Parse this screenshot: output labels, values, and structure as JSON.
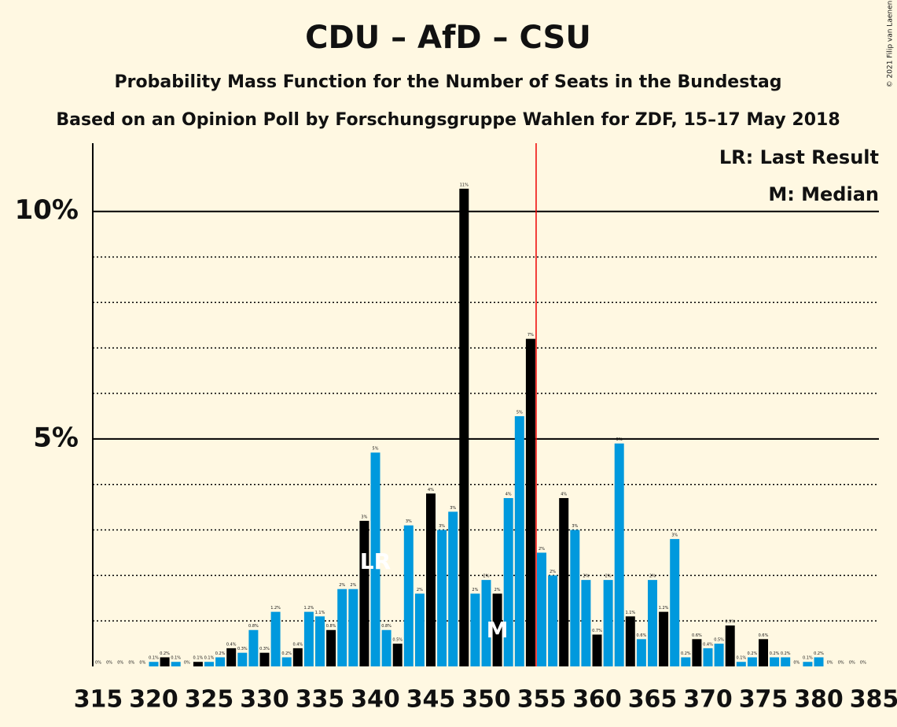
{
  "chart_data": {
    "type": "bar",
    "title": "CDU – AfD – CSU",
    "subtitle": "Probability Mass Function for the Number of Seats in the Bundestag",
    "subtitle2": "Based on an Opinion Poll by Forschungsgruppe Wahlen for ZDF, 15–17 May 2018",
    "legend": [
      "LR: Last Result",
      "M: Median"
    ],
    "copyright": "© 2021 Filip van Laenen",
    "x": [
      315,
      316,
      317,
      318,
      319,
      320,
      321,
      322,
      323,
      324,
      325,
      326,
      327,
      328,
      329,
      330,
      331,
      332,
      333,
      334,
      335,
      336,
      337,
      338,
      339,
      340,
      341,
      342,
      343,
      344,
      345,
      346,
      347,
      348,
      349,
      350,
      351,
      352,
      353,
      354,
      355,
      356,
      357,
      358,
      359,
      360,
      361,
      362,
      363,
      364,
      365,
      366,
      367,
      368,
      369,
      370,
      371,
      372,
      373,
      374,
      375,
      376,
      377,
      378,
      379,
      380,
      381,
      382,
      383,
      384
    ],
    "values": [
      0,
      0,
      0,
      0,
      0,
      0.1,
      0.2,
      0.1,
      0,
      0.1,
      0.1,
      0.2,
      0.4,
      0.3,
      0.8,
      0.3,
      1.2,
      0.2,
      0.4,
      1.2,
      1.1,
      0.8,
      1.7,
      1.7,
      3.2,
      4.7,
      0.8,
      0.5,
      3.1,
      1.6,
      3.8,
      3.0,
      3.4,
      10.5,
      1.6,
      1.9,
      1.6,
      3.7,
      5.5,
      7.2,
      2.5,
      2.0,
      3.7,
      3.0,
      1.9,
      0.7,
      1.9,
      4.9,
      1.1,
      0.6,
      1.9,
      1.2,
      2.8,
      0.2,
      0.6,
      0.4,
      0.5,
      0.9,
      0.1,
      0.2,
      0.6,
      0.2,
      0.2,
      0,
      0.1,
      0.2,
      0,
      0,
      0,
      0
    ],
    "value_labels": [
      "0%",
      "0%",
      "0%",
      "0%",
      "0%",
      "0.1%",
      "0.2%",
      "0.1%",
      "0%",
      "0.1%",
      "0.1%",
      "0.2%",
      "0.4%",
      "0.3%",
      "0.8%",
      "0.3%",
      "1.2%",
      "0.2%",
      "0.4%",
      "1.2%",
      "1.1%",
      "0.8%",
      "2%",
      "2%",
      "3%",
      "5%",
      "0.8%",
      "0.5%",
      "3%",
      "2%",
      "4%",
      "3%",
      "3%",
      "11%",
      "2%",
      "2%",
      "2%",
      "4%",
      "5%",
      "7%",
      "2%",
      "2%",
      "4%",
      "3%",
      "2%",
      "0.7%",
      "2%",
      "5%",
      "1.1%",
      "0.6%",
      "2%",
      "1.2%",
      "3%",
      "0.2%",
      "0.6%",
      "0.4%",
      "0.5%",
      "0.9%",
      "0.1%",
      "0.2%",
      "0.6%",
      "0.2%",
      "0.2%",
      "0%",
      "0.1%",
      "0.2%",
      "0%",
      "0%",
      "0%",
      "0%"
    ],
    "colors": [
      "#000000",
      "#0099dd",
      "#000000",
      "#0099dd",
      "#0099dd",
      "#0099dd",
      "#000000",
      "#0099dd",
      "#0099dd",
      "#000000",
      "#0099dd",
      "#0099dd",
      "#000000",
      "#0099dd",
      "#0099dd",
      "#000000",
      "#0099dd",
      "#0099dd",
      "#000000",
      "#0099dd",
      "#0099dd",
      "#000000",
      "#0099dd",
      "#0099dd",
      "#000000",
      "#0099dd",
      "#0099dd",
      "#000000",
      "#0099dd",
      "#0099dd",
      "#000000",
      "#0099dd",
      "#0099dd",
      "#000000",
      "#0099dd",
      "#0099dd",
      "#000000",
      "#0099dd",
      "#0099dd",
      "#000000",
      "#0099dd",
      "#0099dd",
      "#000000",
      "#0099dd",
      "#0099dd",
      "#000000",
      "#0099dd",
      "#0099dd",
      "#000000",
      "#0099dd",
      "#0099dd",
      "#000000",
      "#0099dd",
      "#0099dd",
      "#000000",
      "#0099dd",
      "#0099dd",
      "#000000",
      "#0099dd",
      "#0099dd",
      "#000000",
      "#0099dd",
      "#0099dd",
      "#000000",
      "#0099dd",
      "#0099dd",
      "#000000",
      "#0099dd",
      "#0099dd",
      "#000000"
    ],
    "markers": [
      {
        "x": 340,
        "label": "LR"
      },
      {
        "x": 351,
        "label": "M"
      }
    ],
    "majority_x": 354.5,
    "xlim": [
      315,
      385
    ],
    "xticks": [
      315,
      320,
      325,
      330,
      335,
      340,
      345,
      350,
      355,
      360,
      365,
      370,
      375,
      380,
      385
    ],
    "ylim": [
      0,
      11.5
    ],
    "yticks": [
      {
        "value": 5,
        "label": "5%"
      },
      {
        "value": 10,
        "label": "10%"
      }
    ],
    "minor_yticks": [
      1,
      2,
      3,
      4,
      6,
      7,
      8,
      9
    ]
  }
}
